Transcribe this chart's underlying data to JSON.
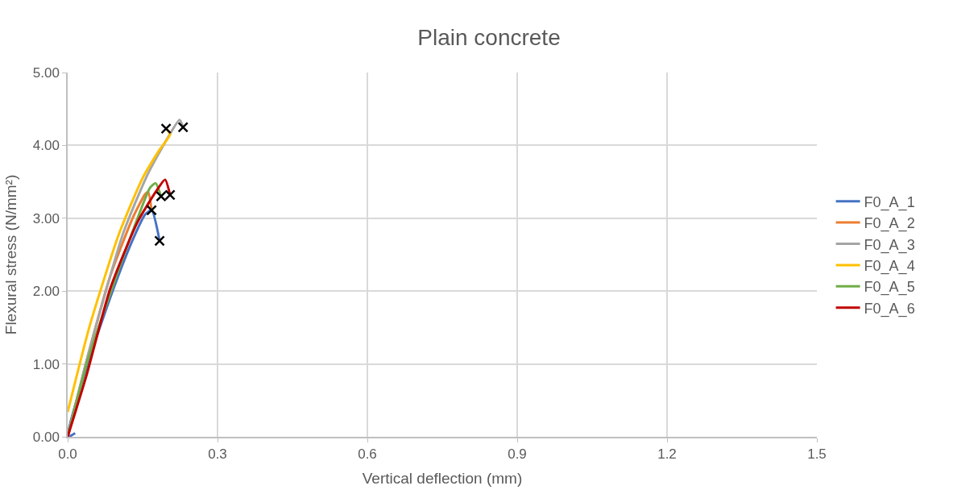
{
  "chart_data": {
    "type": "line",
    "title": "Plain concrete",
    "xlabel": "Vertical deflection (mm)",
    "ylabel": "Flexural stress (N/mm²)",
    "xlim": [
      0,
      1.5
    ],
    "xticks": [
      {
        "value": 0,
        "label": "0.0"
      },
      0.3,
      0.6,
      0.9,
      1.2,
      1.5
    ],
    "ylim": [
      0,
      5
    ],
    "yticks": [
      {
        "value": 0,
        "label": "0.00"
      },
      {
        "value": 1,
        "label": "1.00"
      },
      {
        "value": 2,
        "label": "2.00"
      },
      {
        "value": 3,
        "label": "3.00"
      },
      {
        "value": 4,
        "label": "4.00"
      },
      {
        "value": 5,
        "label": "5.00"
      }
    ],
    "grid": true,
    "legend": "right",
    "line_style": "solid",
    "marker": "none",
    "series": [
      {
        "name": "F0_A_1",
        "color": "#4472c4",
        "x": [
          0.015,
          0.0,
          0.04,
          0.09,
          0.13,
          0.155,
          0.168,
          0.184
        ],
        "values": [
          0.05,
          0.0,
          1.0,
          2.0,
          2.7,
          3.05,
          3.11,
          2.69
        ]
      },
      {
        "name": "F0_A_2",
        "color": "#ed7d31",
        "x": [
          0.0,
          0.04,
          0.085,
          0.13,
          0.155,
          0.161,
          0.168
        ],
        "values": [
          0.0,
          1.1,
          2.2,
          3.0,
          3.33,
          3.36,
          3.11
        ]
      },
      {
        "name": "F0_A_3",
        "color": "#a5a5a5",
        "x": [
          0.0,
          0.04,
          0.111,
          0.16,
          0.2,
          0.224,
          0.231
        ],
        "values": [
          0.0,
          1.1,
          2.79,
          3.6,
          4.1,
          4.35,
          4.25
        ]
      },
      {
        "name": "F0_A_4",
        "color": "#ffc000",
        "x": [
          0.0,
          0.044,
          0.103,
          0.15,
          0.185,
          0.205,
          0.197
        ],
        "values": [
          0.34,
          1.52,
          2.79,
          3.55,
          3.95,
          4.15,
          4.23
        ]
      },
      {
        "name": "F0_A_5",
        "color": "#70ad47",
        "x": [
          0.0,
          0.04,
          0.092,
          0.14,
          0.165,
          0.176,
          0.187
        ],
        "values": [
          0.0,
          1.05,
          2.1,
          3.0,
          3.42,
          3.48,
          3.3
        ]
      },
      {
        "name": "F0_A_6",
        "color": "#c00000",
        "x": [
          0.0,
          0.038,
          0.085,
          0.14,
          0.18,
          0.195,
          0.205
        ],
        "values": [
          0.0,
          0.85,
          2.03,
          2.95,
          3.4,
          3.53,
          3.32
        ]
      },
      {
        "type": "scatter",
        "marker": "cross",
        "color": "#000000",
        "x": [
          0.184,
          0.168,
          0.231,
          0.197,
          0.187,
          0.205
        ],
        "values": [
          2.69,
          3.11,
          4.25,
          4.23,
          3.3,
          3.32
        ]
      }
    ]
  }
}
